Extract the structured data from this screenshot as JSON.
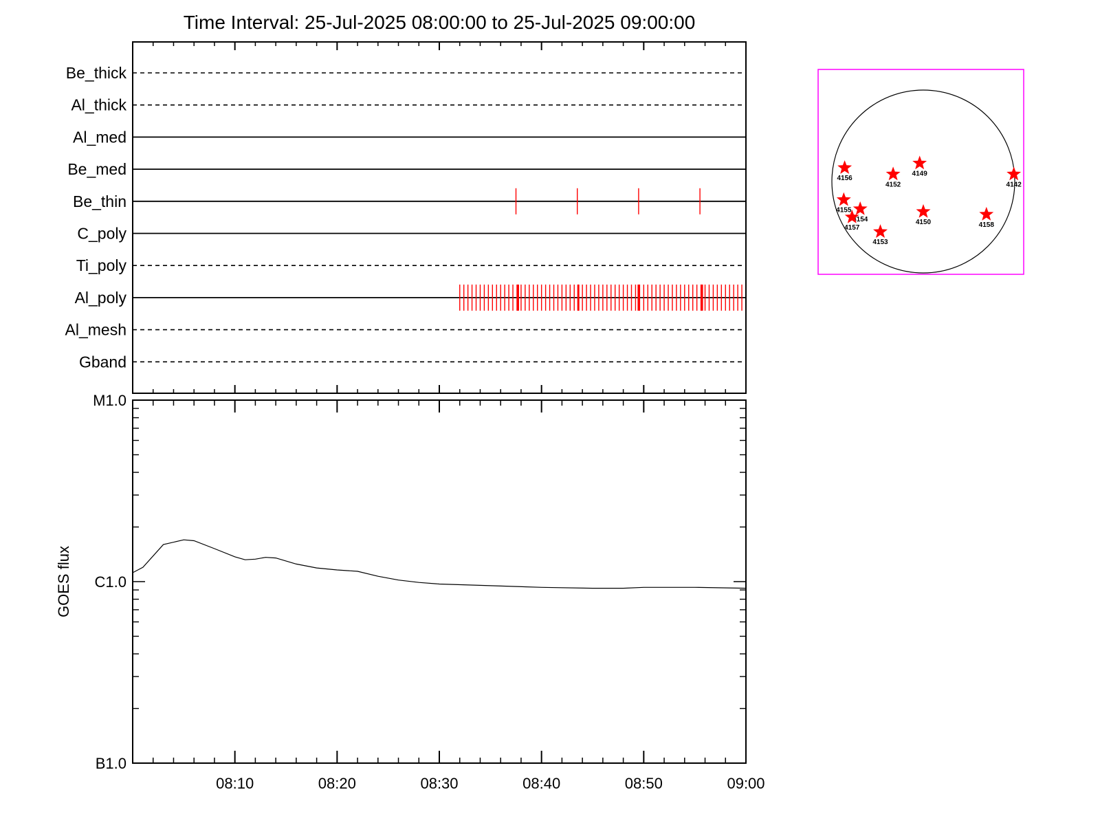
{
  "chart_data": {
    "type": "line",
    "title": "Time Interval: 25-Jul-2025 08:00:00 to 25-Jul-2025 09:00:00",
    "time_range": [
      "08:00",
      "09:00"
    ],
    "x_tick_labels": [
      "08:10",
      "08:20",
      "08:30",
      "08:40",
      "08:50",
      "09:00"
    ],
    "filters": {
      "rows": [
        {
          "name": "Be_thick",
          "style": "dashed",
          "events": []
        },
        {
          "name": "Al_thick",
          "style": "dashed",
          "events": []
        },
        {
          "name": "Al_med",
          "style": "solid",
          "events": []
        },
        {
          "name": "Be_med",
          "style": "solid",
          "events": []
        },
        {
          "name": "Be_thin",
          "style": "solid",
          "events": [
            37.5,
            43.5,
            49.5,
            55.5
          ]
        },
        {
          "name": "C_poly",
          "style": "solid",
          "events": []
        },
        {
          "name": "Ti_poly",
          "style": "dashed",
          "events": []
        },
        {
          "name": "Al_poly",
          "style": "solid",
          "events": {
            "start": 32.0,
            "end": 59.7,
            "step": 0.4
          },
          "thick_events": [
            37.7,
            43.6,
            49.5,
            55.7
          ]
        },
        {
          "name": "Al_mesh",
          "style": "dashed",
          "events": []
        },
        {
          "name": "Gband",
          "style": "dashed",
          "events": []
        }
      ],
      "event_color": "#ff0000"
    },
    "goes": {
      "ylabel": "GOES flux",
      "y_scale": "log",
      "y_ticks": [
        {
          "label": "M1.0",
          "value": 1e-05
        },
        {
          "label": "C1.0",
          "value": 1e-06
        },
        {
          "label": "B1.0",
          "value": 1e-07
        }
      ],
      "ylim": [
        1e-07,
        1e-05
      ],
      "x": [
        0,
        1,
        3,
        5,
        6,
        8,
        10,
        11,
        12,
        13,
        14,
        16,
        18,
        20,
        22,
        24,
        26,
        28,
        30,
        35,
        40,
        45,
        48,
        50,
        55,
        60
      ],
      "y": [
        1.12e-06,
        1.2e-06,
        1.6e-06,
        1.7e-06,
        1.68e-06,
        1.52e-06,
        1.37e-06,
        1.32e-06,
        1.33e-06,
        1.36e-06,
        1.35e-06,
        1.25e-06,
        1.19e-06,
        1.16e-06,
        1.14e-06,
        1.07e-06,
        1.02e-06,
        9.9e-07,
        9.7e-07,
        9.5e-07,
        9.3e-07,
        9.2e-07,
        9.2e-07,
        9.3e-07,
        9.3e-07,
        9.2e-07
      ]
    },
    "sun_map": {
      "box_color": "#ff00ff",
      "marker_color": "#ff0000",
      "regions": [
        {
          "label": "4156",
          "x": -0.86,
          "y": 0.15
        },
        {
          "label": "4152",
          "x": -0.33,
          "y": 0.08
        },
        {
          "label": "4149",
          "x": -0.04,
          "y": 0.2
        },
        {
          "label": "4142",
          "x": 0.99,
          "y": 0.08
        },
        {
          "label": "4155",
          "x": -0.87,
          "y": -0.2
        },
        {
          "label": "4154",
          "x": -0.69,
          "y": -0.3
        },
        {
          "label": "4157",
          "x": -0.78,
          "y": -0.39
        },
        {
          "label": "4150",
          "x": 0.0,
          "y": -0.33
        },
        {
          "label": "4158",
          "x": 0.69,
          "y": -0.36
        },
        {
          "label": "4153",
          "x": -0.47,
          "y": -0.55
        }
      ]
    }
  }
}
